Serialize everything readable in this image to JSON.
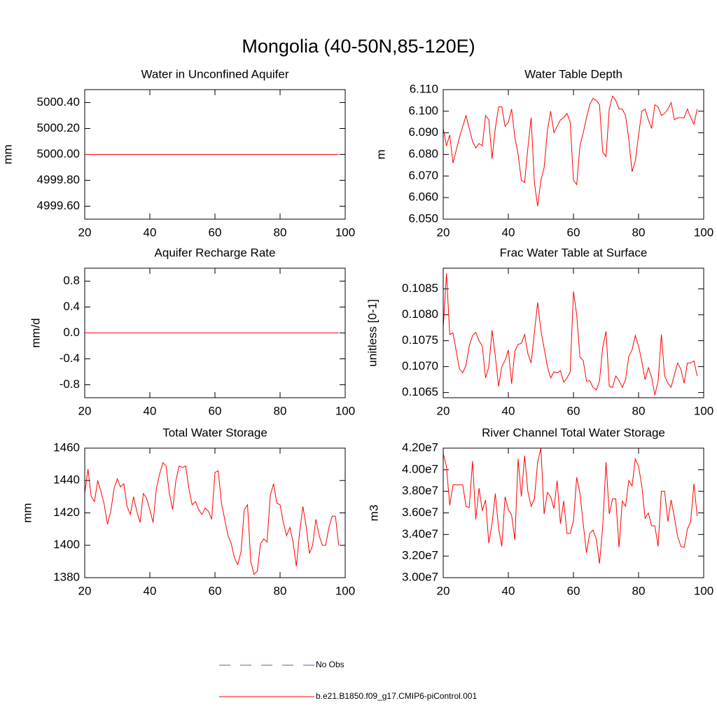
{
  "title": "Mongolia (40-50N,85-120E)",
  "legend": [
    {
      "name": "No Obs",
      "color": "#5a5ab4",
      "dash": true
    },
    {
      "name": "b.e21.B1850.f09_g17.CMIP6-piControl.001",
      "color": "#ff0000",
      "dash": false
    }
  ],
  "chart_data": [
    {
      "type": "line",
      "title": "Water in Unconfined Aquifer",
      "ylabel": "mm",
      "color": "#ff0000",
      "xlim": [
        20,
        100
      ],
      "xticks": [
        20,
        40,
        60,
        80,
        100
      ],
      "ylim": [
        4999.5,
        5000.5
      ],
      "yticks": [
        {
          "value": 4999.6,
          "label": "4999.60"
        },
        {
          "value": 4999.8,
          "label": "4999.80"
        },
        {
          "value": 5000,
          "label": "5000.00"
        },
        {
          "value": 5000.2,
          "label": "5000.20"
        },
        {
          "value": 5000.4,
          "label": "5000.40"
        }
      ],
      "x": [
        20,
        21,
        22,
        23,
        24,
        25,
        26,
        27,
        28,
        29,
        30,
        31,
        32,
        33,
        34,
        35,
        36,
        37,
        38,
        39,
        40,
        41,
        42,
        43,
        44,
        45,
        46,
        47,
        48,
        49,
        50,
        51,
        52,
        53,
        54,
        55,
        56,
        57,
        58,
        59,
        60,
        61,
        62,
        63,
        64,
        65,
        66,
        67,
        68,
        69,
        70,
        71,
        72,
        73,
        74,
        75,
        76,
        77,
        78,
        79,
        80,
        81,
        82,
        83,
        84,
        85,
        86,
        87,
        88,
        89,
        90,
        91,
        92,
        93,
        94,
        95,
        96,
        97,
        98
      ],
      "values": [
        5000,
        5000,
        5000,
        5000,
        5000,
        5000,
        5000,
        5000,
        5000,
        5000,
        5000,
        5000,
        5000,
        5000,
        5000,
        5000,
        5000,
        5000,
        5000,
        5000,
        5000,
        5000,
        5000,
        5000,
        5000,
        5000,
        5000,
        5000,
        5000,
        5000,
        5000,
        5000,
        5000,
        5000,
        5000,
        5000,
        5000,
        5000,
        5000,
        5000,
        5000,
        5000,
        5000,
        5000,
        5000,
        5000,
        5000,
        5000,
        5000,
        5000,
        5000,
        5000,
        5000,
        5000,
        5000,
        5000,
        5000,
        5000,
        5000,
        5000,
        5000,
        5000,
        5000,
        5000,
        5000,
        5000,
        5000,
        5000,
        5000,
        5000,
        5000,
        5000,
        5000,
        5000,
        5000,
        5000,
        5000,
        5000,
        5000
      ]
    },
    {
      "type": "line",
      "title": "Water Table Depth",
      "ylabel": "m",
      "color": "#ff0000",
      "xlim": [
        20,
        100
      ],
      "xticks": [
        20,
        40,
        60,
        80,
        100
      ],
      "ylim": [
        6.05,
        6.11
      ],
      "yticks": [
        {
          "value": 6.05,
          "label": "6.050"
        },
        {
          "value": 6.06,
          "label": "6.060"
        },
        {
          "value": 6.07,
          "label": "6.070"
        },
        {
          "value": 6.08,
          "label": "6.080"
        },
        {
          "value": 6.09,
          "label": "6.090"
        },
        {
          "value": 6.1,
          "label": "6.100"
        },
        {
          "value": 6.11,
          "label": "6.110"
        }
      ],
      "x": [
        20,
        21,
        22,
        23,
        24,
        25,
        26,
        27,
        28,
        29,
        30,
        31,
        32,
        33,
        34,
        35,
        36,
        37,
        38,
        39,
        40,
        41,
        42,
        43,
        44,
        45,
        46,
        47,
        48,
        49,
        50,
        51,
        52,
        53,
        54,
        55,
        56,
        57,
        58,
        59,
        60,
        61,
        62,
        63,
        64,
        65,
        66,
        67,
        68,
        69,
        70,
        71,
        72,
        73,
        74,
        75,
        76,
        77,
        78,
        79,
        80,
        81,
        82,
        83,
        84,
        85,
        86,
        87,
        88,
        89,
        90,
        91,
        92,
        93,
        94,
        95,
        96,
        97,
        98
      ],
      "values": [
        6.092,
        6.084,
        6.089,
        6.076,
        6.082,
        6.088,
        6.093,
        6.098,
        6.092,
        6.086,
        6.083,
        6.085,
        6.084,
        6.098,
        6.096,
        6.078,
        6.092,
        6.102,
        6.102,
        6.093,
        6.095,
        6.101,
        6.088,
        6.08,
        6.068,
        6.067,
        6.083,
        6.097,
        6.067,
        6.056,
        6.068,
        6.074,
        6.091,
        6.1,
        6.09,
        6.093,
        6.096,
        6.097,
        6.099,
        6.095,
        6.068,
        6.066,
        6.084,
        6.09,
        6.097,
        6.103,
        6.106,
        6.105,
        6.103,
        6.081,
        6.079,
        6.101,
        6.107,
        6.105,
        6.101,
        6.101,
        6.098,
        6.087,
        6.072,
        6.077,
        6.089,
        6.1,
        6.101,
        6.096,
        6.092,
        6.103,
        6.102,
        6.098,
        6.099,
        6.101,
        6.104,
        6.096,
        6.097,
        6.097,
        6.097,
        6.101,
        6.097,
        6.094,
        6.101
      ]
    },
    {
      "type": "line",
      "title": "Aquifer Recharge Rate",
      "ylabel": "mm/d",
      "color": "#ff0000",
      "xlim": [
        20,
        100
      ],
      "xticks": [
        20,
        40,
        60,
        80,
        100
      ],
      "ylim": [
        -1,
        1
      ],
      "yticks": [
        -0.8,
        -0.4,
        {
          "value": 0,
          "label": "0.0"
        },
        0.4,
        0.8
      ],
      "x": [
        20,
        21,
        22,
        23,
        24,
        25,
        26,
        27,
        28,
        29,
        30,
        31,
        32,
        33,
        34,
        35,
        36,
        37,
        38,
        39,
        40,
        41,
        42,
        43,
        44,
        45,
        46,
        47,
        48,
        49,
        50,
        51,
        52,
        53,
        54,
        55,
        56,
        57,
        58,
        59,
        60,
        61,
        62,
        63,
        64,
        65,
        66,
        67,
        68,
        69,
        70,
        71,
        72,
        73,
        74,
        75,
        76,
        77,
        78,
        79,
        80,
        81,
        82,
        83,
        84,
        85,
        86,
        87,
        88,
        89,
        90,
        91,
        92,
        93,
        94,
        95,
        96,
        97,
        98
      ],
      "values": [
        0,
        0,
        0,
        0,
        0,
        0,
        0,
        0,
        0,
        0,
        0,
        0,
        0,
        0,
        0,
        0,
        0,
        0,
        0,
        0,
        0,
        0,
        0,
        0,
        0,
        0,
        0,
        0,
        0,
        0,
        0,
        0,
        0,
        0,
        0,
        0,
        0,
        0,
        0,
        0,
        0,
        0,
        0,
        0,
        0,
        0,
        0,
        0,
        0,
        0,
        0,
        0,
        0,
        0,
        0,
        0,
        0,
        0,
        0,
        0,
        0,
        0,
        0,
        0,
        0,
        0,
        0,
        0,
        0,
        0,
        0,
        0,
        0,
        0,
        0,
        0,
        0,
        0,
        0
      ]
    },
    {
      "type": "line",
      "title": "Frac Water Table at Surface",
      "ylabel": "unitless [0-1]",
      "color": "#ff0000",
      "xlim": [
        20,
        100
      ],
      "xticks": [
        20,
        40,
        60,
        80,
        100
      ],
      "ylim": [
        0.1064,
        0.1089
      ],
      "yticks": [
        0.1065,
        {
          "value": 0.107,
          "label": "0.1070"
        },
        0.1075,
        {
          "value": 0.108,
          "label": "0.1080"
        },
        0.1085
      ],
      "x": [
        20,
        21,
        22,
        23,
        24,
        25,
        26,
        27,
        28,
        29,
        30,
        31,
        32,
        33,
        34,
        35,
        36,
        37,
        38,
        39,
        40,
        41,
        42,
        43,
        44,
        45,
        46,
        47,
        48,
        49,
        50,
        51,
        52,
        53,
        54,
        55,
        56,
        57,
        58,
        59,
        60,
        61,
        62,
        63,
        64,
        65,
        66,
        67,
        68,
        69,
        70,
        71,
        72,
        73,
        74,
        75,
        76,
        77,
        78,
        79,
        80,
        81,
        82,
        83,
        84,
        85,
        86,
        87,
        88,
        89,
        90,
        91,
        92,
        93,
        94,
        95,
        96,
        97,
        98
      ],
      "values": [
        0.10775,
        0.1088,
        0.10762,
        0.10765,
        0.1073,
        0.10695,
        0.10688,
        0.10703,
        0.1074,
        0.1076,
        0.10766,
        0.1075,
        0.1074,
        0.10678,
        0.107,
        0.1077,
        0.1072,
        0.10662,
        0.107,
        0.10712,
        0.10732,
        0.10667,
        0.1073,
        0.10743,
        0.10745,
        0.10762,
        0.10725,
        0.10707,
        0.10765,
        0.10824,
        0.1077,
        0.10735,
        0.107,
        0.10678,
        0.1069,
        0.10688,
        0.10692,
        0.1067,
        0.10678,
        0.1069,
        0.10845,
        0.108,
        0.10718,
        0.10712,
        0.10672,
        0.10673,
        0.1066,
        0.10655,
        0.10672,
        0.10738,
        0.10768,
        0.10662,
        0.1066,
        0.10682,
        0.10673,
        0.1066,
        0.10675,
        0.1072,
        0.10732,
        0.1076,
        0.1074,
        0.1071,
        0.10675,
        0.10698,
        0.1068,
        0.10645,
        0.10672,
        0.10762,
        0.10682,
        0.10668,
        0.1066,
        0.10685,
        0.10707,
        0.10695,
        0.10668,
        0.10707,
        0.10707,
        0.10711,
        0.10682
      ]
    },
    {
      "type": "line",
      "title": "Total Water Storage",
      "ylabel": "mm",
      "color": "#ff0000",
      "xlim": [
        20,
        100
      ],
      "xticks": [
        20,
        40,
        60,
        80,
        100
      ],
      "ylim": [
        1380,
        1460
      ],
      "yticks": [
        1380,
        1400,
        1420,
        1440,
        1460
      ],
      "x": [
        20,
        21,
        22,
        23,
        24,
        25,
        26,
        27,
        28,
        29,
        30,
        31,
        32,
        33,
        34,
        35,
        36,
        37,
        38,
        39,
        40,
        41,
        42,
        43,
        44,
        45,
        46,
        47,
        48,
        49,
        50,
        51,
        52,
        53,
        54,
        55,
        56,
        57,
        58,
        59,
        60,
        61,
        62,
        63,
        64,
        65,
        66,
        67,
        68,
        69,
        70,
        71,
        72,
        73,
        74,
        75,
        76,
        77,
        78,
        79,
        80,
        81,
        82,
        83,
        84,
        85,
        86,
        87,
        88,
        89,
        90,
        91,
        92,
        93,
        94,
        95,
        96,
        97,
        98
      ],
      "values": [
        1432,
        1447,
        1430,
        1427,
        1440,
        1433,
        1425,
        1413,
        1421,
        1435,
        1441,
        1436,
        1438,
        1424,
        1419,
        1430,
        1421,
        1414,
        1432,
        1429,
        1422,
        1414,
        1435,
        1444,
        1451,
        1449,
        1432,
        1422,
        1440,
        1449,
        1448,
        1449,
        1435,
        1425,
        1427,
        1422,
        1419,
        1423,
        1421,
        1416,
        1445,
        1446,
        1426,
        1416,
        1406,
        1401,
        1392,
        1388,
        1396,
        1422,
        1425,
        1390,
        1382,
        1384,
        1401,
        1404,
        1402,
        1431,
        1438,
        1426,
        1425,
        1414,
        1406,
        1411,
        1402,
        1387,
        1408,
        1424,
        1412,
        1395,
        1400,
        1416,
        1406,
        1400,
        1400,
        1411,
        1418,
        1418,
        1400
      ]
    },
    {
      "type": "line",
      "title": "River Channel Total Water Storage",
      "ylabel": "m3",
      "color": "#ff0000",
      "xlim": [
        20,
        100
      ],
      "xticks": [
        20,
        40,
        60,
        80,
        100
      ],
      "ylim": [
        30000000,
        42000000
      ],
      "yticks": [
        {
          "value": 30000000,
          "label": "3.00e7"
        },
        {
          "value": 32000000,
          "label": "3.20e7"
        },
        {
          "value": 34000000,
          "label": "3.40e7"
        },
        {
          "value": 36000000,
          "label": "3.60e7"
        },
        {
          "value": 38000000,
          "label": "3.80e7"
        },
        {
          "value": 40000000,
          "label": "4.00e7"
        },
        {
          "value": 42000000,
          "label": "4.20e7"
        }
      ],
      "x": [
        20,
        21,
        22,
        23,
        24,
        25,
        26,
        27,
        28,
        29,
        30,
        31,
        32,
        33,
        34,
        35,
        36,
        37,
        38,
        39,
        40,
        41,
        42,
        43,
        44,
        45,
        46,
        47,
        48,
        49,
        50,
        51,
        52,
        53,
        54,
        55,
        56,
        57,
        58,
        59,
        60,
        61,
        62,
        63,
        64,
        65,
        66,
        67,
        68,
        69,
        70,
        71,
        72,
        73,
        74,
        75,
        76,
        77,
        78,
        79,
        80,
        81,
        82,
        83,
        84,
        85,
        86,
        87,
        88,
        89,
        90,
        91,
        92,
        93,
        94,
        95,
        96,
        97,
        98
      ],
      "values": [
        41500000,
        40300000,
        36700000,
        38600000,
        38600000,
        38600000,
        38600000,
        36600000,
        36500000,
        40800000,
        35400000,
        38300000,
        36200000,
        37200000,
        33200000,
        35000000,
        37800000,
        34600000,
        32900000,
        37500000,
        36300000,
        35800000,
        33500000,
        41000000,
        37500000,
        41300000,
        38000000,
        36600000,
        37300000,
        40700000,
        42000000,
        35900000,
        37900000,
        37500000,
        36400000,
        39000000,
        35000000,
        37100000,
        34100000,
        34100000,
        35300000,
        39300000,
        37800000,
        35000000,
        32300000,
        34100000,
        34400000,
        33600000,
        31300000,
        34800000,
        40700000,
        35900000,
        37300000,
        37300000,
        32800000,
        37100000,
        36600000,
        39000000,
        38500000,
        41000000,
        40300000,
        38500000,
        35500000,
        36000000,
        34800000,
        34800000,
        32900000,
        38000000,
        38000000,
        35200000,
        37200000,
        35600000,
        33800000,
        32900000,
        32800000,
        34500000,
        35200000,
        38700000,
        35700000
      ]
    }
  ]
}
